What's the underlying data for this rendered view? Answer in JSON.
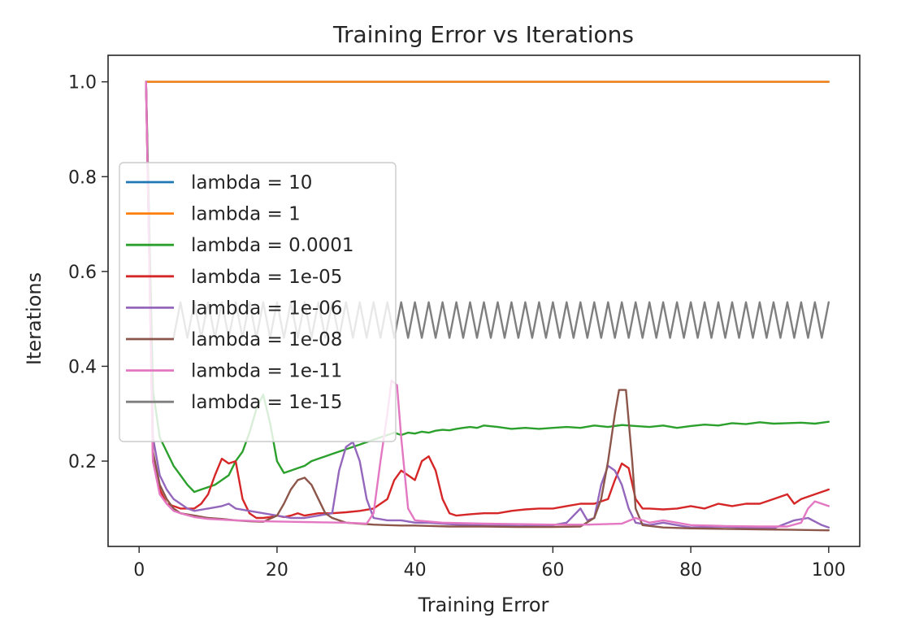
{
  "chart_data": {
    "type": "line",
    "title": "Training Error vs Iterations",
    "xlabel": "Training Error",
    "ylabel": "Iterations",
    "xlim": [
      -4.5,
      104.5
    ],
    "ylim": [
      0.02,
      1.056
    ],
    "xticks": [
      0,
      20,
      40,
      60,
      80,
      100
    ],
    "yticks": [
      0.2,
      0.4,
      0.6,
      0.8,
      1.0
    ],
    "xtick_labels": [
      "0",
      "20",
      "40",
      "60",
      "80",
      "100"
    ],
    "ytick_labels": [
      "0.2",
      "0.4",
      "0.6",
      "0.8",
      "1.0"
    ],
    "grid": false,
    "legend_position": "center-left",
    "series": [
      {
        "name": "lambda = 10",
        "color": "#1f77b4",
        "points": [
          [
            1,
            1.0
          ],
          [
            100,
            1.0
          ]
        ]
      },
      {
        "name": "lambda = 1",
        "color": "#ff7f0e",
        "points": [
          [
            1,
            1.0
          ],
          [
            100,
            1.0
          ]
        ]
      },
      {
        "name": "lambda = 0.0001",
        "color": "#2ca02c",
        "points": [
          [
            1,
            1.0
          ],
          [
            2,
            0.35
          ],
          [
            3,
            0.25
          ],
          [
            4,
            0.22
          ],
          [
            5,
            0.19
          ],
          [
            6,
            0.17
          ],
          [
            7,
            0.15
          ],
          [
            8,
            0.135
          ],
          [
            9,
            0.14
          ],
          [
            10,
            0.145
          ],
          [
            11,
            0.15
          ],
          [
            12,
            0.16
          ],
          [
            13,
            0.17
          ],
          [
            14,
            0.2
          ],
          [
            15,
            0.22
          ],
          [
            16,
            0.26
          ],
          [
            17,
            0.31
          ],
          [
            18,
            0.34
          ],
          [
            19,
            0.28
          ],
          [
            20,
            0.2
          ],
          [
            21,
            0.175
          ],
          [
            22,
            0.18
          ],
          [
            23,
            0.185
          ],
          [
            24,
            0.19
          ],
          [
            25,
            0.2
          ],
          [
            26,
            0.205
          ],
          [
            27,
            0.21
          ],
          [
            28,
            0.215
          ],
          [
            29,
            0.22
          ],
          [
            30,
            0.225
          ],
          [
            31,
            0.23
          ],
          [
            32,
            0.235
          ],
          [
            33,
            0.24
          ],
          [
            34,
            0.245
          ],
          [
            35,
            0.25
          ],
          [
            36,
            0.255
          ],
          [
            37,
            0.26
          ],
          [
            38,
            0.255
          ],
          [
            39,
            0.26
          ],
          [
            40,
            0.258
          ],
          [
            41,
            0.262
          ],
          [
            42,
            0.26
          ],
          [
            43,
            0.264
          ],
          [
            44,
            0.266
          ],
          [
            45,
            0.265
          ],
          [
            46,
            0.268
          ],
          [
            47,
            0.27
          ],
          [
            48,
            0.272
          ],
          [
            49,
            0.27
          ],
          [
            50,
            0.275
          ],
          [
            52,
            0.272
          ],
          [
            54,
            0.268
          ],
          [
            56,
            0.27
          ],
          [
            58,
            0.268
          ],
          [
            60,
            0.27
          ],
          [
            62,
            0.272
          ],
          [
            64,
            0.27
          ],
          [
            66,
            0.275
          ],
          [
            68,
            0.272
          ],
          [
            70,
            0.276
          ],
          [
            72,
            0.274
          ],
          [
            74,
            0.272
          ],
          [
            76,
            0.275
          ],
          [
            78,
            0.27
          ],
          [
            80,
            0.274
          ],
          [
            82,
            0.277
          ],
          [
            84,
            0.275
          ],
          [
            86,
            0.28
          ],
          [
            88,
            0.278
          ],
          [
            90,
            0.282
          ],
          [
            92,
            0.279
          ],
          [
            94,
            0.28
          ],
          [
            96,
            0.281
          ],
          [
            98,
            0.279
          ],
          [
            100,
            0.283
          ]
        ]
      },
      {
        "name": "lambda = 1e-05",
        "color": "#d62728",
        "points": [
          [
            1,
            1.0
          ],
          [
            2,
            0.2
          ],
          [
            3,
            0.14
          ],
          [
            4,
            0.11
          ],
          [
            5,
            0.105
          ],
          [
            6,
            0.1
          ],
          [
            7,
            0.1
          ],
          [
            8,
            0.1
          ],
          [
            9,
            0.11
          ],
          [
            10,
            0.13
          ],
          [
            11,
            0.17
          ],
          [
            12,
            0.205
          ],
          [
            13,
            0.195
          ],
          [
            14,
            0.2
          ],
          [
            15,
            0.12
          ],
          [
            16,
            0.09
          ],
          [
            17,
            0.08
          ],
          [
            18,
            0.08
          ],
          [
            19,
            0.082
          ],
          [
            20,
            0.085
          ],
          [
            21,
            0.082
          ],
          [
            22,
            0.085
          ],
          [
            23,
            0.09
          ],
          [
            24,
            0.085
          ],
          [
            26,
            0.09
          ],
          [
            28,
            0.09
          ],
          [
            30,
            0.092
          ],
          [
            32,
            0.095
          ],
          [
            34,
            0.1
          ],
          [
            36,
            0.12
          ],
          [
            37,
            0.16
          ],
          [
            38,
            0.18
          ],
          [
            39,
            0.17
          ],
          [
            40,
            0.16
          ],
          [
            41,
            0.2
          ],
          [
            42,
            0.21
          ],
          [
            43,
            0.18
          ],
          [
            44,
            0.12
          ],
          [
            45,
            0.09
          ],
          [
            46,
            0.085
          ],
          [
            48,
            0.088
          ],
          [
            50,
            0.09
          ],
          [
            52,
            0.09
          ],
          [
            54,
            0.095
          ],
          [
            56,
            0.098
          ],
          [
            58,
            0.1
          ],
          [
            60,
            0.1
          ],
          [
            62,
            0.105
          ],
          [
            64,
            0.11
          ],
          [
            66,
            0.11
          ],
          [
            68,
            0.12
          ],
          [
            69,
            0.16
          ],
          [
            70,
            0.195
          ],
          [
            71,
            0.185
          ],
          [
            72,
            0.12
          ],
          [
            73,
            0.1
          ],
          [
            74,
            0.1
          ],
          [
            76,
            0.098
          ],
          [
            78,
            0.1
          ],
          [
            80,
            0.105
          ],
          [
            82,
            0.1
          ],
          [
            84,
            0.11
          ],
          [
            86,
            0.105
          ],
          [
            88,
            0.11
          ],
          [
            90,
            0.11
          ],
          [
            92,
            0.12
          ],
          [
            94,
            0.13
          ],
          [
            95,
            0.11
          ],
          [
            96,
            0.12
          ],
          [
            98,
            0.13
          ],
          [
            100,
            0.14
          ]
        ]
      },
      {
        "name": "lambda = 1e-06",
        "color": "#9467bd",
        "points": [
          [
            1,
            1.0
          ],
          [
            2,
            0.25
          ],
          [
            3,
            0.17
          ],
          [
            4,
            0.14
          ],
          [
            5,
            0.12
          ],
          [
            6,
            0.11
          ],
          [
            7,
            0.1
          ],
          [
            8,
            0.095
          ],
          [
            10,
            0.1
          ],
          [
            12,
            0.105
          ],
          [
            13,
            0.11
          ],
          [
            14,
            0.1
          ],
          [
            16,
            0.095
          ],
          [
            18,
            0.09
          ],
          [
            20,
            0.085
          ],
          [
            22,
            0.08
          ],
          [
            24,
            0.08
          ],
          [
            26,
            0.085
          ],
          [
            28,
            0.09
          ],
          [
            29,
            0.18
          ],
          [
            30,
            0.23
          ],
          [
            31,
            0.24
          ],
          [
            32,
            0.2
          ],
          [
            33,
            0.12
          ],
          [
            34,
            0.08
          ],
          [
            36,
            0.075
          ],
          [
            38,
            0.075
          ],
          [
            40,
            0.07
          ],
          [
            42,
            0.07
          ],
          [
            44,
            0.068
          ],
          [
            46,
            0.066
          ],
          [
            48,
            0.065
          ],
          [
            50,
            0.064
          ],
          [
            55,
            0.063
          ],
          [
            60,
            0.065
          ],
          [
            62,
            0.07
          ],
          [
            64,
            0.1
          ],
          [
            65,
            0.075
          ],
          [
            66,
            0.08
          ],
          [
            67,
            0.15
          ],
          [
            68,
            0.19
          ],
          [
            69,
            0.18
          ],
          [
            70,
            0.15
          ],
          [
            71,
            0.1
          ],
          [
            72,
            0.07
          ],
          [
            74,
            0.065
          ],
          [
            76,
            0.07
          ],
          [
            78,
            0.065
          ],
          [
            80,
            0.06
          ],
          [
            84,
            0.062
          ],
          [
            88,
            0.06
          ],
          [
            92,
            0.058
          ],
          [
            95,
            0.075
          ],
          [
            97,
            0.08
          ],
          [
            99,
            0.065
          ],
          [
            100,
            0.06
          ]
        ]
      },
      {
        "name": "lambda = 1e-08",
        "color": "#8c564b",
        "points": [
          [
            1,
            1.0
          ],
          [
            2,
            0.22
          ],
          [
            3,
            0.15
          ],
          [
            4,
            0.12
          ],
          [
            5,
            0.1
          ],
          [
            6,
            0.09
          ],
          [
            8,
            0.085
          ],
          [
            10,
            0.08
          ],
          [
            12,
            0.078
          ],
          [
            14,
            0.075
          ],
          [
            16,
            0.073
          ],
          [
            18,
            0.072
          ],
          [
            20,
            0.085
          ],
          [
            21,
            0.11
          ],
          [
            22,
            0.14
          ],
          [
            23,
            0.16
          ],
          [
            24,
            0.165
          ],
          [
            25,
            0.15
          ],
          [
            26,
            0.12
          ],
          [
            27,
            0.09
          ],
          [
            28,
            0.08
          ],
          [
            30,
            0.07
          ],
          [
            32,
            0.068
          ],
          [
            34,
            0.066
          ],
          [
            36,
            0.065
          ],
          [
            38,
            0.064
          ],
          [
            40,
            0.064
          ],
          [
            45,
            0.062
          ],
          [
            50,
            0.062
          ],
          [
            55,
            0.061
          ],
          [
            60,
            0.061
          ],
          [
            64,
            0.062
          ],
          [
            66,
            0.08
          ],
          [
            67,
            0.12
          ],
          [
            68,
            0.2
          ],
          [
            69,
            0.3
          ],
          [
            69.6,
            0.35
          ],
          [
            70.6,
            0.35
          ],
          [
            71.5,
            0.2
          ],
          [
            72,
            0.1
          ],
          [
            73,
            0.065
          ],
          [
            76,
            0.06
          ],
          [
            80,
            0.058
          ],
          [
            85,
            0.057
          ],
          [
            90,
            0.056
          ],
          [
            95,
            0.055
          ],
          [
            100,
            0.054
          ]
        ]
      },
      {
        "name": "lambda = 1e-11",
        "color": "#e377c2",
        "points": [
          [
            1,
            1.0
          ],
          [
            2,
            0.2
          ],
          [
            3,
            0.13
          ],
          [
            4,
            0.11
          ],
          [
            5,
            0.095
          ],
          [
            6,
            0.09
          ],
          [
            8,
            0.082
          ],
          [
            10,
            0.078
          ],
          [
            14,
            0.075
          ],
          [
            18,
            0.073
          ],
          [
            22,
            0.072
          ],
          [
            26,
            0.071
          ],
          [
            30,
            0.07
          ],
          [
            33,
            0.068
          ],
          [
            34,
            0.09
          ],
          [
            35,
            0.2
          ],
          [
            36,
            0.3
          ],
          [
            36.6,
            0.37
          ],
          [
            37.4,
            0.36
          ],
          [
            38,
            0.25
          ],
          [
            39,
            0.1
          ],
          [
            40,
            0.075
          ],
          [
            44,
            0.07
          ],
          [
            50,
            0.068
          ],
          [
            55,
            0.067
          ],
          [
            60,
            0.066
          ],
          [
            65,
            0.066
          ],
          [
            70,
            0.068
          ],
          [
            72,
            0.08
          ],
          [
            74,
            0.07
          ],
          [
            76,
            0.075
          ],
          [
            78,
            0.07
          ],
          [
            80,
            0.065
          ],
          [
            85,
            0.063
          ],
          [
            90,
            0.062
          ],
          [
            94,
            0.062
          ],
          [
            96,
            0.07
          ],
          [
            97,
            0.1
          ],
          [
            98,
            0.115
          ],
          [
            99,
            0.11
          ],
          [
            100,
            0.105
          ]
        ]
      },
      {
        "name": "lambda = 1e-15",
        "color": "#7f7f7f",
        "zigzag": true,
        "x_start": 5,
        "x_end": 100,
        "step": 1,
        "low": 0.46,
        "high": 0.535
      }
    ]
  }
}
